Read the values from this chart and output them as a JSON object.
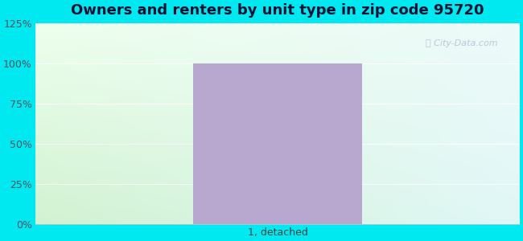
{
  "title": "Owners and renters by unit type in zip code 95720",
  "categories": [
    "1, detached"
  ],
  "values": [
    100
  ],
  "bar_color": "#b8a8d0",
  "ylim": [
    0,
    125
  ],
  "ytick_labels": [
    "0%",
    "25%",
    "50%",
    "75%",
    "100%",
    "125%"
  ],
  "ytick_values": [
    0,
    25,
    50,
    75,
    100,
    125
  ],
  "title_fontsize": 13,
  "tick_fontsize": 9,
  "outer_bg_color": "#00e8f0",
  "watermark_text": "City-Data.com",
  "watermark_color": "#b8c8d8",
  "bar_width": 0.35,
  "figsize": [
    6.5,
    3.0
  ],
  "dpi": 100,
  "grad_topleft": [
    0.93,
    1.0,
    0.93
  ],
  "grad_topright": [
    0.93,
    0.98,
    0.98
  ],
  "grad_bottomleft": [
    0.82,
    0.95,
    0.82
  ],
  "grad_bottomright": [
    0.88,
    0.97,
    0.97
  ]
}
